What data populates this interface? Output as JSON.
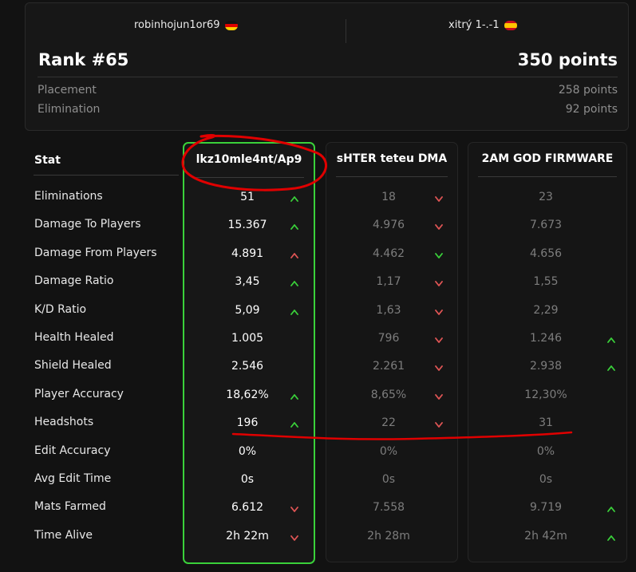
{
  "match": {
    "team_left": {
      "name": "robinhojun1or69",
      "flag": "de-flag-icon"
    },
    "team_right": {
      "name": "xitrý 1-.-1",
      "flag": "es-flag-icon"
    },
    "rank": "Rank #65",
    "total_points": "350 points",
    "breakdown": [
      {
        "label": "Placement",
        "value": "258 points"
      },
      {
        "label": "Elimination",
        "value": "92 points"
      }
    ]
  },
  "table": {
    "stat_header": "Stat",
    "players": [
      "lkz10mle4nt/Ap9",
      "sHTER teteu DMA",
      "2AM GOD FIRMWARE"
    ],
    "rows": [
      {
        "label": "Eliminations",
        "values": [
          "51",
          "18",
          "23"
        ],
        "arrows": [
          "up",
          "down",
          ""
        ]
      },
      {
        "label": "Damage To Players",
        "values": [
          "15.367",
          "4.976",
          "7.673"
        ],
        "arrows": [
          "up",
          "down",
          ""
        ]
      },
      {
        "label": "Damage From Players",
        "values": [
          "4.891",
          "4.462",
          "4.656"
        ],
        "arrows": [
          "up-red",
          "down-green",
          ""
        ]
      },
      {
        "label": "Damage Ratio",
        "values": [
          "3,45",
          "1,17",
          "1,55"
        ],
        "arrows": [
          "up",
          "down",
          ""
        ]
      },
      {
        "label": "K/D Ratio",
        "values": [
          "5,09",
          "1,63",
          "2,29"
        ],
        "arrows": [
          "up",
          "down",
          ""
        ]
      },
      {
        "label": "Health Healed",
        "values": [
          "1.005",
          "796",
          "1.246"
        ],
        "arrows": [
          "",
          "down",
          "up"
        ]
      },
      {
        "label": "Shield Healed",
        "values": [
          "2.546",
          "2.261",
          "2.938"
        ],
        "arrows": [
          "",
          "down",
          "up"
        ]
      },
      {
        "label": "Player Accuracy",
        "values": [
          "18,62%",
          "8,65%",
          "12,30%"
        ],
        "arrows": [
          "up",
          "down",
          ""
        ]
      },
      {
        "label": "Headshots",
        "values": [
          "196",
          "22",
          "31"
        ],
        "arrows": [
          "up",
          "down",
          ""
        ]
      },
      {
        "label": "Edit Accuracy",
        "values": [
          "0%",
          "0%",
          "0%"
        ],
        "arrows": [
          "",
          "",
          ""
        ]
      },
      {
        "label": "Avg Edit Time",
        "values": [
          "0s",
          "0s",
          "0s"
        ],
        "arrows": [
          "",
          "",
          ""
        ]
      },
      {
        "label": "Mats Farmed",
        "values": [
          "6.612",
          "7.558",
          "9.719"
        ],
        "arrows": [
          "down",
          "",
          "up"
        ]
      },
      {
        "label": "Time Alive",
        "values": [
          "2h 22m",
          "2h 28m",
          "2h 42m"
        ],
        "arrows": [
          "down",
          "",
          "up"
        ]
      }
    ]
  },
  "colors": {
    "highlight": "#3ad13a",
    "up": "#3ad13a",
    "down": "#e05555",
    "annotation": "#e00000"
  }
}
